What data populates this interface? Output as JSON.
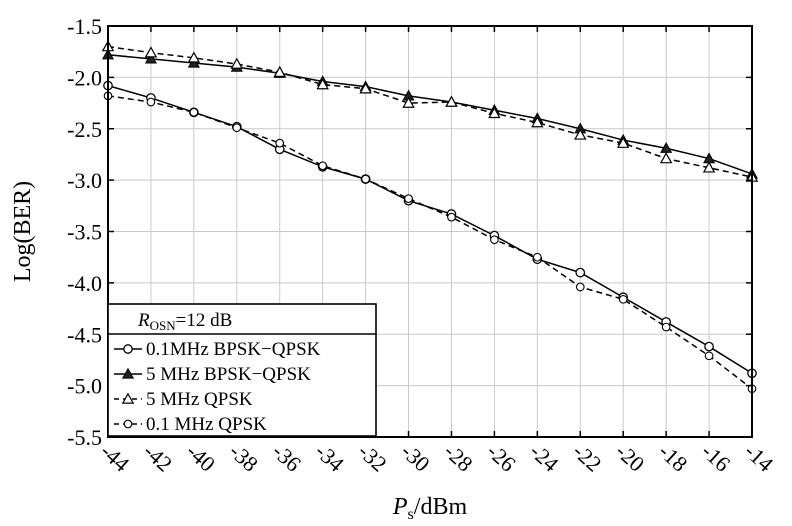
{
  "chart_data": {
    "type": "line",
    "xlabel": {
      "main": "P",
      "sub": "s",
      "rest": "/dBm"
    },
    "ylabel": "Log(BER)",
    "xlim": [
      -44,
      -14
    ],
    "ylim": [
      -5.5,
      -1.5
    ],
    "x_ticks": [
      -44,
      -42,
      -40,
      -38,
      -36,
      -34,
      -32,
      -30,
      -28,
      -26,
      -24,
      -22,
      -20,
      -18,
      -16,
      -14
    ],
    "x_tick_labels": [
      "-44",
      "-42",
      "-40",
      "-38",
      "-36",
      "-34",
      "-32",
      "-30",
      "-28",
      "-26",
      "-24",
      "-22",
      "-20",
      "-18",
      "-16",
      "-14"
    ],
    "y_ticks": [
      -1.5,
      -2.0,
      -2.5,
      -3.0,
      -3.5,
      -4.0,
      -4.5,
      -5.0,
      -5.5
    ],
    "y_tick_labels": [
      "-1.5",
      "-2.0",
      "-2.5",
      "-3.0",
      "-3.5",
      "-4.0",
      "-4.5",
      "-5.0",
      "-5.5"
    ],
    "grid": true,
    "legend": {
      "placement": "bottom-left",
      "header": {
        "main": "R",
        "sub": "OSN",
        "rest": "=12 dB"
      }
    },
    "x": [
      -44,
      -42,
      -40,
      -38,
      -36,
      -34,
      -32,
      -30,
      -28,
      -26,
      -24,
      -22,
      -20,
      -18,
      -16,
      -14
    ],
    "series": [
      {
        "name": "0.1MHz BPSK−QPSK",
        "marker": "circle",
        "line": "solid",
        "values": [
          -2.08,
          -2.2,
          -2.34,
          -2.48,
          -2.7,
          -2.87,
          -2.99,
          -3.2,
          -3.33,
          -3.54,
          -3.77,
          -3.9,
          -4.14,
          -4.38,
          -4.62,
          -4.88
        ]
      },
      {
        "name": "5 MHz BPSK−QPSK",
        "marker": "triangle-filled",
        "line": "solid",
        "values": [
          -1.78,
          -1.82,
          -1.86,
          -1.9,
          -1.96,
          -2.04,
          -2.09,
          -2.18,
          -2.24,
          -2.32,
          -2.4,
          -2.5,
          -2.61,
          -2.69,
          -2.79,
          -2.94
        ]
      },
      {
        "name": "5 MHz QPSK",
        "marker": "triangle-open",
        "line": "dashed",
        "values": [
          -1.7,
          -1.76,
          -1.81,
          -1.87,
          -1.95,
          -2.07,
          -2.11,
          -2.25,
          -2.24,
          -2.35,
          -2.44,
          -2.56,
          -2.64,
          -2.79,
          -2.88,
          -2.97
        ]
      },
      {
        "name": "0.1 MHz QPSK",
        "marker": "circle-open-small",
        "line": "dashed",
        "values": [
          -2.18,
          -2.24,
          -2.34,
          -2.49,
          -2.64,
          -2.86,
          -2.99,
          -3.18,
          -3.36,
          -3.58,
          -3.75,
          -4.04,
          -4.16,
          -4.43,
          -4.71,
          -5.03
        ]
      }
    ]
  }
}
